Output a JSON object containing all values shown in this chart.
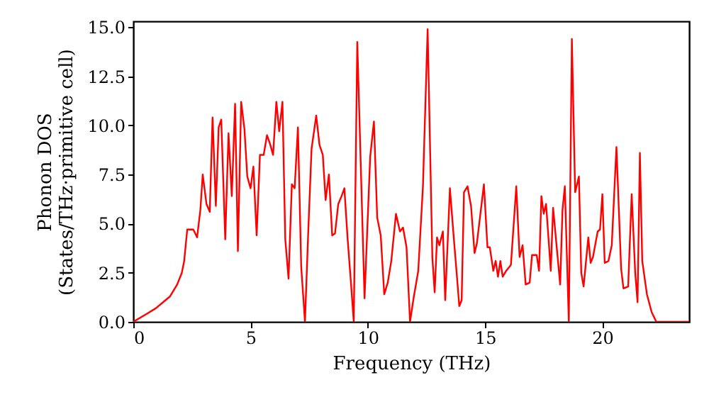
{
  "chart_data": {
    "type": "line",
    "xlabel": "Frequency (THz)",
    "ylabel": "Phonon DOS\n(States/THz·primitive cell)",
    "x": [
      0,
      0.56,
      0.97,
      1.37,
      1.57,
      1.87,
      2.07,
      2.17,
      2.3,
      2.56,
      2.72,
      2.86,
      2.96,
      3.12,
      3.26,
      3.38,
      3.52,
      3.64,
      3.75,
      3.92,
      4.06,
      4.2,
      4.34,
      4.46,
      4.6,
      4.74,
      4.86,
      5.0,
      5.12,
      5.26,
      5.4,
      5.56,
      5.7,
      5.82,
      5.96,
      6.1,
      6.22,
      6.36,
      6.48,
      6.62,
      6.76,
      6.88,
      7.02,
      7.16,
      7.32,
      7.46,
      7.6,
      7.8,
      7.94,
      8.08,
      8.2,
      8.34,
      8.48,
      8.6,
      8.74,
      8.88,
      9.0,
      9.14,
      9.28,
      9.4,
      9.55,
      9.86,
      10.1,
      10.26,
      10.4,
      10.55,
      10.7,
      10.85,
      11.0,
      11.2,
      11.37,
      11.5,
      11.65,
      11.8,
      11.95,
      12.15,
      12.35,
      12.55,
      12.75,
      12.85,
      12.95,
      13.05,
      13.2,
      13.3,
      13.5,
      13.65,
      13.8,
      13.9,
      14.0,
      14.1,
      14.25,
      14.4,
      14.55,
      14.65,
      14.95,
      15.1,
      15.2,
      15.35,
      15.45,
      15.55,
      15.65,
      15.75,
      15.9,
      16.1,
      16.33,
      16.47,
      16.6,
      16.73,
      16.9,
      17.0,
      17.2,
      17.3,
      17.4,
      17.5,
      17.6,
      17.8,
      17.9,
      18.2,
      18.3,
      18.4,
      18.57,
      18.7,
      18.84,
      19.0,
      19.1,
      19.2,
      19.4,
      19.5,
      19.6,
      19.8,
      19.9,
      20.0,
      20.1,
      20.26,
      20.4,
      20.6,
      20.8,
      20.9,
      21.1,
      21.25,
      21.4,
      21.5,
      21.6,
      21.7,
      21.9,
      22.1,
      22.3,
      23.7
    ],
    "series": [
      {
        "color": "#ff0000",
        "values": [
          0,
          0.4,
          0.7,
          1.1,
          1.3,
          1.9,
          2.5,
          3.1,
          4.7,
          4.7,
          4.3,
          5.7,
          7.5,
          6.0,
          5.6,
          10.4,
          5.9,
          9.9,
          10.3,
          4.2,
          9.6,
          6.4,
          11.1,
          3.6,
          11.2,
          9.8,
          7.4,
          6.8,
          7.9,
          4.4,
          8.5,
          8.5,
          9.5,
          9.1,
          8.5,
          11.2,
          9.7,
          11.2,
          4.2,
          2.2,
          7.0,
          6.8,
          9.9,
          2.8,
          0,
          4.6,
          8.8,
          10.5,
          9.0,
          8.5,
          6.2,
          7.5,
          4.4,
          4.5,
          6.0,
          6.4,
          6.8,
          4.2,
          2.0,
          0,
          14.25,
          1.2,
          8.4,
          10.2,
          5.3,
          4.4,
          1.4,
          2.0,
          3.1,
          5.5,
          4.6,
          4.8,
          3.8,
          0,
          1.2,
          2.6,
          6.9,
          14.9,
          3.3,
          1.5,
          4.3,
          3.9,
          4.6,
          1.1,
          6.8,
          4.5,
          2.3,
          0.8,
          1.1,
          6.6,
          6.9,
          5.9,
          3.5,
          4.0,
          7.0,
          3.8,
          3.8,
          2.6,
          3.1,
          2.3,
          3.1,
          2.3,
          2.6,
          2.9,
          6.9,
          3.3,
          3.9,
          1.9,
          2.0,
          3.4,
          3.4,
          2.6,
          6.4,
          5.5,
          6.0,
          2.6,
          5.8,
          1.9,
          5.7,
          6.9,
          0,
          14.4,
          6.6,
          7.4,
          2.5,
          1.8,
          4.3,
          3.0,
          3.3,
          4.6,
          4.7,
          6.5,
          3.0,
          3.1,
          3.9,
          8.9,
          2.7,
          1.7,
          1.8,
          6.5,
          2.5,
          1.0,
          8.6,
          3.1,
          1.4,
          0.5,
          0,
          0
        ]
      }
    ],
    "xlim": [
      0,
      23.7
    ],
    "ylim": [
      0,
      15.3
    ],
    "xticks": [
      0,
      5,
      10,
      15,
      20
    ],
    "yticks": [
      {
        "value": 0,
        "label": "0.0"
      },
      {
        "value": 2.5,
        "label": "2.5"
      },
      {
        "value": 5,
        "label": "5.0"
      },
      {
        "value": 7.5,
        "label": "7.5"
      },
      {
        "value": 10,
        "label": "10.0"
      },
      {
        "value": 12.5,
        "label": "12.5"
      },
      {
        "value": 15,
        "label": "15.0"
      }
    ]
  }
}
